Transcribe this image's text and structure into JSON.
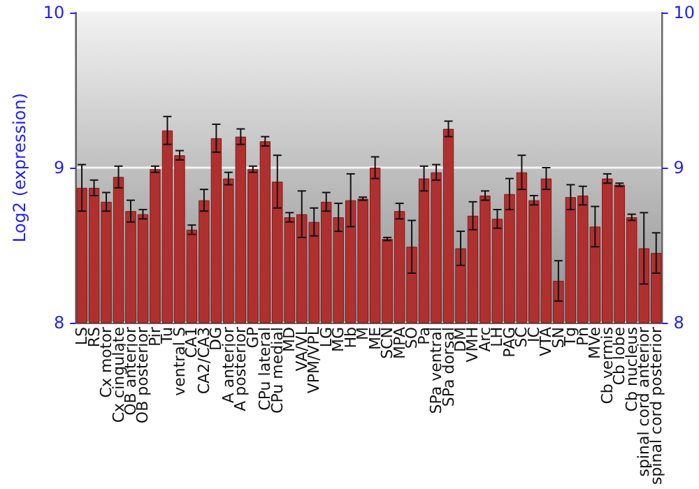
{
  "chart_data": {
    "type": "bar",
    "ylabel": "Log2 (expression)",
    "categories": [
      "LS",
      "RS",
      "Cx motor",
      "Cx cingulate",
      "OB anterior",
      "OB posterior",
      "Pir",
      "Tu",
      "ventral S",
      "CA1",
      "CA2/CA3",
      "DG",
      "A anterior",
      "A posterior",
      "GP",
      "CPu lateral",
      "CPu medial",
      "MD",
      "VA/VL",
      "VPM/VPL",
      "LG",
      "MG",
      "Hb",
      "M",
      "ME",
      "SCN",
      "MPA",
      "SO",
      "Pa",
      "SPa ventral",
      "SPa dorsal",
      "DM",
      "VMH",
      "Arc",
      "LH",
      "PAG",
      "SC",
      "IC",
      "VTA",
      "SN",
      "Tg",
      "Pn",
      "MVe",
      "Cb vermis",
      "Cb lobe",
      "Cb nucleus",
      "spinal cord anterior",
      "spinal cord posterior"
    ],
    "values": [
      8.87,
      8.87,
      8.78,
      8.94,
      8.72,
      8.7,
      8.99,
      9.24,
      9.08,
      8.6,
      8.79,
      9.19,
      8.93,
      9.2,
      8.99,
      9.17,
      8.91,
      8.68,
      8.7,
      8.65,
      8.78,
      8.68,
      8.79,
      8.8,
      9.0,
      8.54,
      8.72,
      8.49,
      8.93,
      8.97,
      9.25,
      8.48,
      8.69,
      8.82,
      8.67,
      8.83,
      8.97,
      8.79,
      8.93,
      8.27,
      8.81,
      8.82,
      8.62,
      8.93,
      8.89,
      8.68,
      8.48,
      8.45
    ],
    "errors": [
      0.15,
      0.05,
      0.06,
      0.07,
      0.07,
      0.03,
      0.02,
      0.09,
      0.03,
      0.03,
      0.07,
      0.09,
      0.04,
      0.05,
      0.02,
      0.03,
      0.17,
      0.03,
      0.15,
      0.09,
      0.06,
      0.09,
      0.17,
      0.01,
      0.07,
      0.01,
      0.05,
      0.17,
      0.08,
      0.05,
      0.05,
      0.11,
      0.09,
      0.03,
      0.06,
      0.1,
      0.11,
      0.03,
      0.07,
      0.13,
      0.08,
      0.06,
      0.13,
      0.03,
      0.01,
      0.02,
      0.23,
      0.13
    ],
    "color": "#b03030",
    "ylim": [
      8,
      10
    ],
    "yticks": [
      8,
      9,
      10
    ],
    "y2lim": [
      8,
      10
    ],
    "y2ticks": [
      8,
      9,
      10
    ],
    "grid": "y"
  }
}
